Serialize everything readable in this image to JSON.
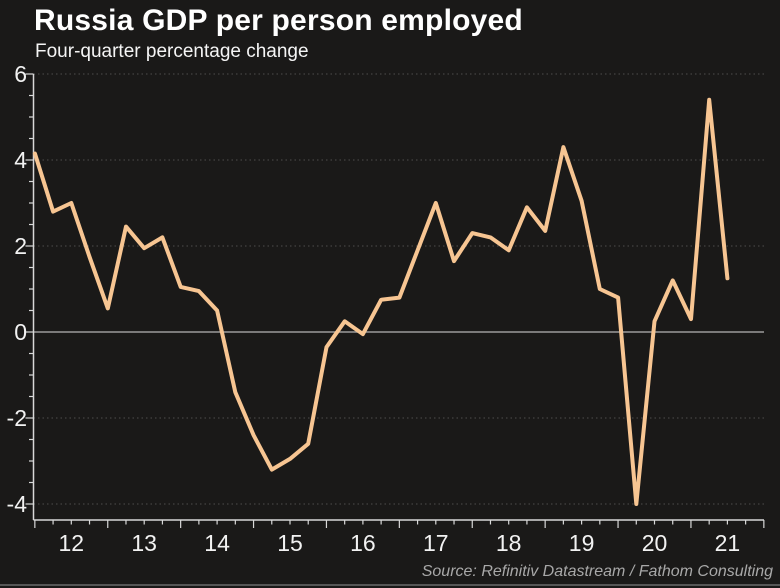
{
  "header": {
    "title": "Russia GDP per person employed",
    "subtitle": "Four-quarter percentage change"
  },
  "footer": {
    "source": "Source: Refinitiv Datastream / Fathom Consulting"
  },
  "chart_data": {
    "type": "line",
    "title": "Russia GDP per person employed",
    "subtitle": "Four-quarter percentage change",
    "series_name": "Russia GDP per person employed, four-quarter % change",
    "x": [
      "2012 Q1",
      "2012 Q2",
      "2012 Q3",
      "2012 Q4",
      "2013 Q1",
      "2013 Q2",
      "2013 Q3",
      "2013 Q4",
      "2014 Q1",
      "2014 Q2",
      "2014 Q3",
      "2014 Q4",
      "2015 Q1",
      "2015 Q2",
      "2015 Q3",
      "2015 Q4",
      "2016 Q1",
      "2016 Q2",
      "2016 Q3",
      "2016 Q4",
      "2017 Q1",
      "2017 Q2",
      "2017 Q3",
      "2017 Q4",
      "2018 Q1",
      "2018 Q2",
      "2018 Q3",
      "2018 Q4",
      "2019 Q1",
      "2019 Q2",
      "2019 Q3",
      "2019 Q4",
      "2020 Q1",
      "2020 Q2",
      "2020 Q3",
      "2020 Q4",
      "2021 Q1",
      "2021 Q2",
      "2021 Q3"
    ],
    "values": [
      4.15,
      2.8,
      3.0,
      1.75,
      0.55,
      2.45,
      1.95,
      2.2,
      1.05,
      0.95,
      0.5,
      -1.4,
      -2.4,
      -3.2,
      -2.95,
      -2.6,
      -0.35,
      0.25,
      -0.05,
      0.75,
      0.8,
      1.9,
      3.0,
      1.65,
      2.3,
      2.2,
      1.9,
      2.9,
      2.35,
      4.3,
      3.05,
      1.0,
      0.8,
      -4.0,
      0.25,
      1.2,
      0.3,
      5.4,
      1.25
    ],
    "ylim": [
      -4.4,
      6
    ],
    "yticks": [
      6,
      4,
      2,
      0,
      -2,
      -4
    ],
    "y_minor_tick_step": 0.5,
    "xticklabels": [
      "12",
      "13",
      "14",
      "15",
      "16",
      "17",
      "18",
      "19",
      "20",
      "21"
    ],
    "x_minor_ticks": "quarterly",
    "grid": "dotted horizontal gridlines at major y ticks; solid line at zero",
    "legend": "none",
    "colors": {
      "line": "#f7c592",
      "background": "#1a1918",
      "zero_line": "#9b9b9b",
      "gridline": "#4d4d4d",
      "axis": "#d8d8d8",
      "tick_label": "#f2f2f2",
      "title": "#ffffff",
      "source_text": "#a8a8a8",
      "divider": "#565656"
    }
  }
}
